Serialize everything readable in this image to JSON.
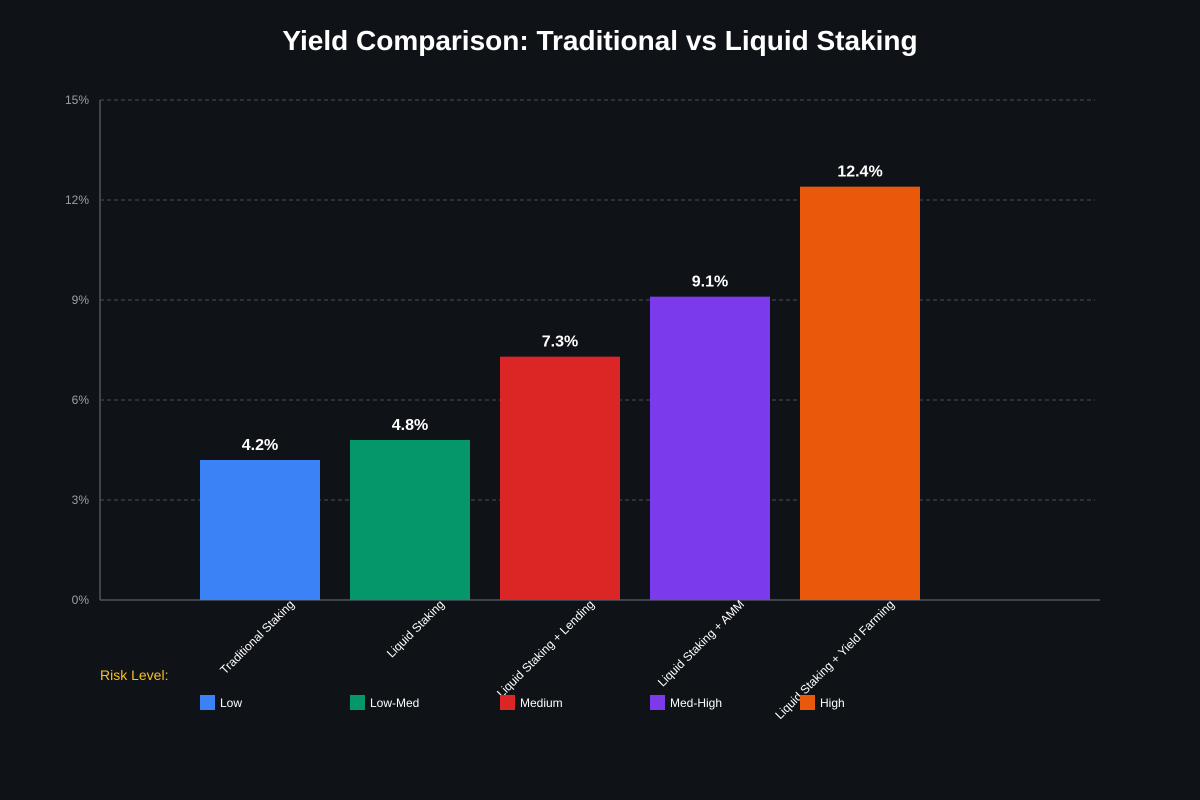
{
  "chart_data": {
    "type": "bar",
    "title": "Yield Comparison: Traditional vs Liquid Staking",
    "xlabel": "",
    "ylabel": "",
    "ylim": [
      0,
      15
    ],
    "y_ticks": [
      0,
      3,
      6,
      9,
      12,
      15
    ],
    "y_tick_labels": [
      "0%",
      "3%",
      "6%",
      "9%",
      "12%",
      "15%"
    ],
    "grid": true,
    "categories": [
      "Traditional Staking",
      "Liquid Staking",
      "Liquid Staking + Lending",
      "Liquid Staking + AMM",
      "Liquid Staking + Yield Farming"
    ],
    "values": [
      4.2,
      4.8,
      7.3,
      9.1,
      12.4
    ],
    "value_labels": [
      "4.2%",
      "4.8%",
      "7.3%",
      "9.1%",
      "12.4%"
    ],
    "colors": [
      "#3b82f6",
      "#059669",
      "#dc2626",
      "#7c3aed",
      "#ea580c"
    ],
    "legend": {
      "title": "Risk Level:",
      "title_color": "#fbbf24",
      "items": [
        {
          "label": "Low",
          "color": "#3b82f6"
        },
        {
          "label": "Low-Med",
          "color": "#059669"
        },
        {
          "label": "Medium",
          "color": "#dc2626"
        },
        {
          "label": "Med-High",
          "color": "#7c3aed"
        },
        {
          "label": "High",
          "color": "#ea580c"
        }
      ]
    }
  }
}
